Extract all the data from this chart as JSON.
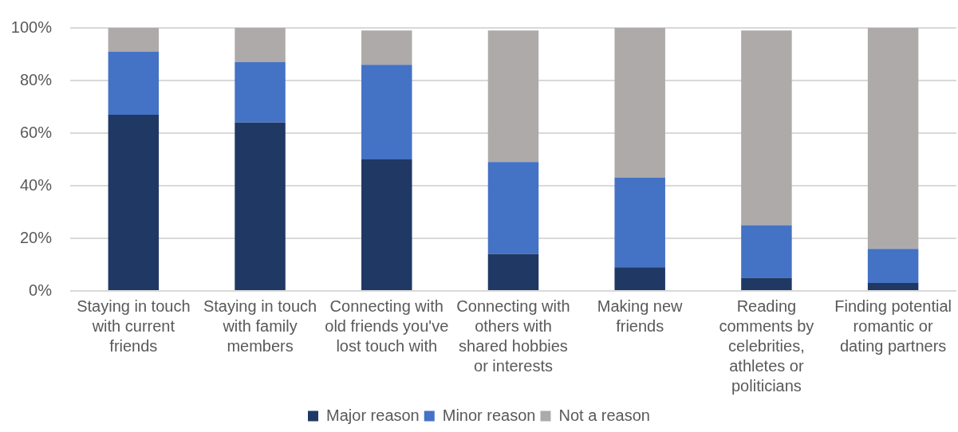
{
  "chart_data": {
    "type": "bar",
    "stacked": true,
    "categories": [
      "Staying in touch with current friends",
      "Staying in touch with family members",
      "Connecting with old friends you've lost touch with",
      "Connecting with others with shared hobbies or interests",
      "Making new friends",
      "Reading comments by celebrities, athletes or politicians",
      "Finding potential romantic or dating partners"
    ],
    "series": [
      {
        "name": "Major reason",
        "color": "#203864",
        "values": [
          67,
          64,
          50,
          14,
          9,
          5,
          3
        ]
      },
      {
        "name": "Minor reason",
        "color": "#4472c4",
        "values": [
          24,
          23,
          36,
          35,
          34,
          20,
          13
        ]
      },
      {
        "name": "Not a reason",
        "color": "#aeaaaa",
        "values": [
          9,
          13,
          13,
          50,
          57,
          74,
          84
        ]
      }
    ],
    "ylim": [
      0,
      100
    ],
    "yticks": [
      {
        "value": 0,
        "label": "0%"
      },
      {
        "value": 20,
        "label": "20%"
      },
      {
        "value": 40,
        "label": "40%"
      },
      {
        "value": 60,
        "label": "60%"
      },
      {
        "value": 80,
        "label": "80%"
      },
      {
        "value": 100,
        "label": "100%"
      }
    ],
    "grid": "y",
    "legend": "bottom"
  }
}
